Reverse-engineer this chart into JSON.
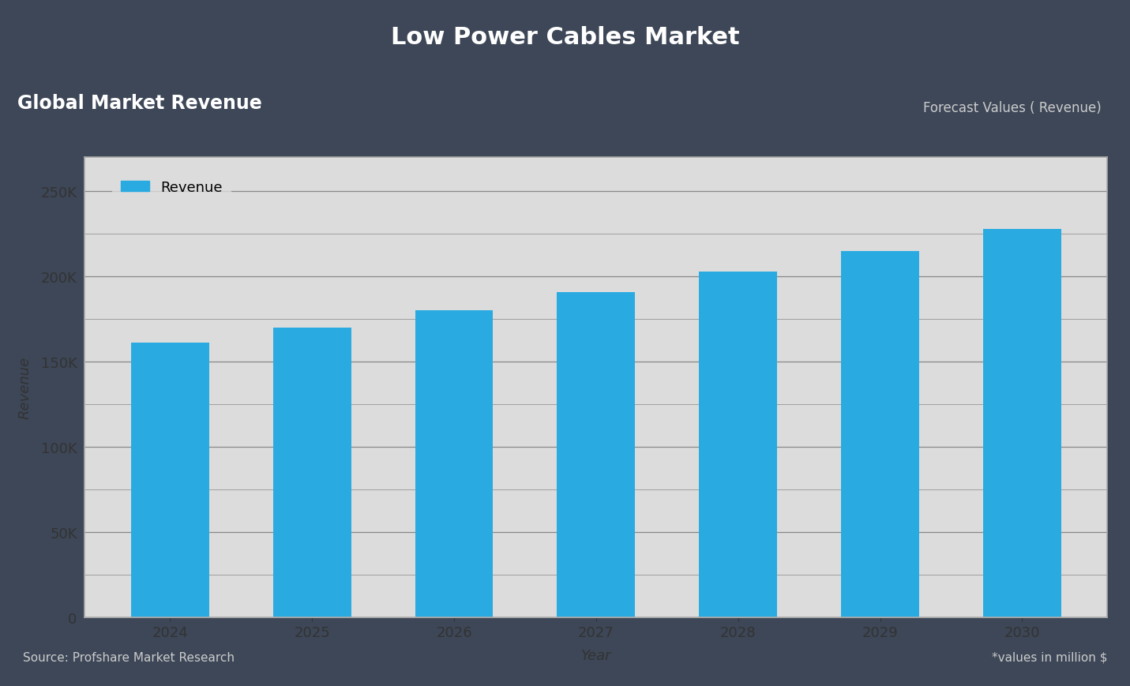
{
  "title": "Low Power Cables Market",
  "subtitle_left": "Global Market Revenue",
  "subtitle_right": "Forecast Values ( Revenue)",
  "footer_left": "Source: Profshare Market Research",
  "footer_right": "*values in million $",
  "xlabel": "Year",
  "ylabel": "Revenue",
  "legend_label": "Revenue",
  "categories": [
    "2024",
    "2025",
    "2026",
    "2027",
    "2028",
    "2029",
    "2030"
  ],
  "values": [
    161000,
    170000,
    180000,
    191000,
    203000,
    215000,
    228000
  ],
  "bar_color": "#29ABE2",
  "ylim": [
    0,
    270000
  ],
  "yticks": [
    0,
    50000,
    100000,
    150000,
    200000,
    250000
  ],
  "ytick_labels": [
    "0",
    "50K",
    "100K",
    "150K",
    "200K",
    "250K"
  ],
  "background_outer": "#3d4757",
  "background_inner": "#dcdcdc",
  "title_color": "#ffffff",
  "subtitle_left_bg": "#4a6fa5",
  "subtitle_left_color": "#ffffff",
  "subtitle_right_color": "#cccccc",
  "footer_color": "#cccccc",
  "axis_text_color": "#333333",
  "grid_color": "#888888",
  "legend_box_color": "#29ABE2"
}
